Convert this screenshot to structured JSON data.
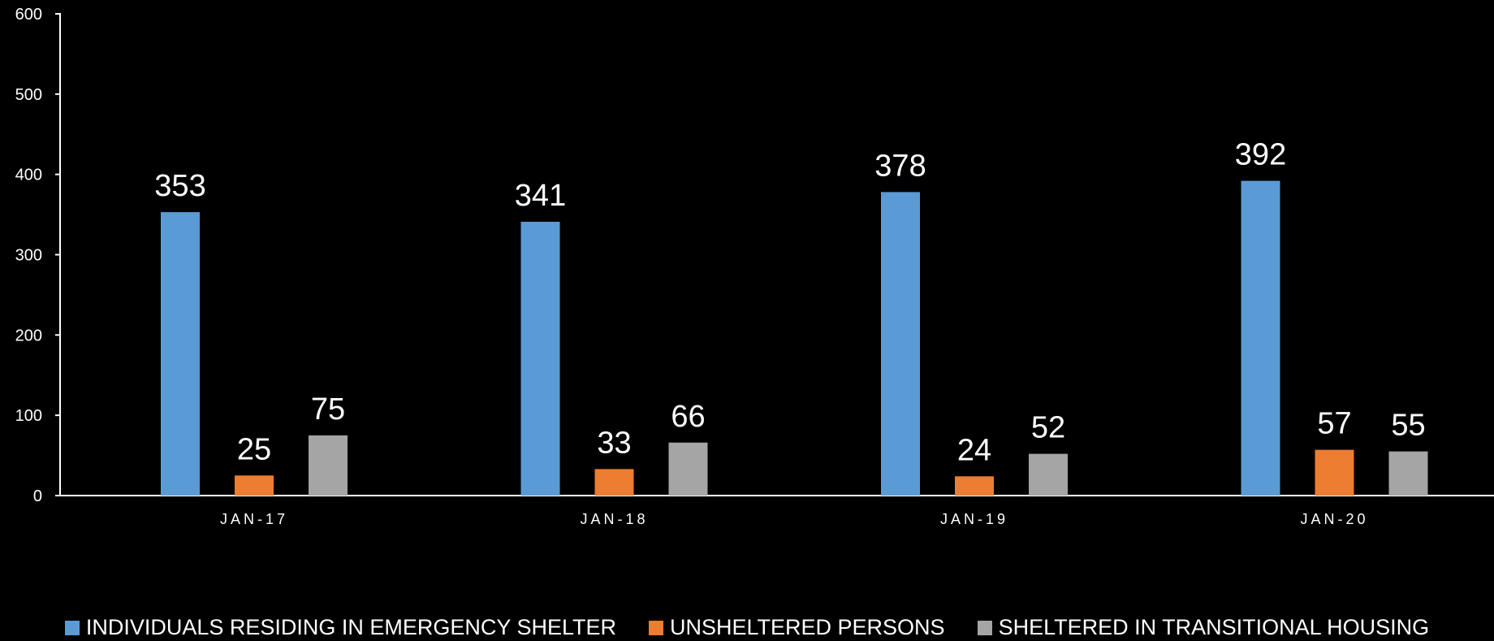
{
  "chart_data": {
    "type": "bar",
    "categories": [
      "JAN-17",
      "JAN-18",
      "JAN-19",
      "JAN-20"
    ],
    "series": [
      {
        "name": "INDIVIDUALS RESIDING IN EMERGENCY SHELTER",
        "values": [
          353,
          341,
          378,
          392
        ],
        "color": "#5b9bd5"
      },
      {
        "name": "UNSHELTERED PERSONS",
        "values": [
          25,
          33,
          24,
          57
        ],
        "color": "#ed7d31"
      },
      {
        "name": "SHELTERED IN TRANSITIONAL HOUSING",
        "values": [
          75,
          66,
          52,
          55
        ],
        "color": "#a5a5a5"
      }
    ],
    "ylim": [
      0,
      600
    ],
    "yticks": [
      0,
      100,
      200,
      300,
      400,
      500,
      600
    ],
    "grid": false,
    "legend": "bottom",
    "data_labels": true
  }
}
